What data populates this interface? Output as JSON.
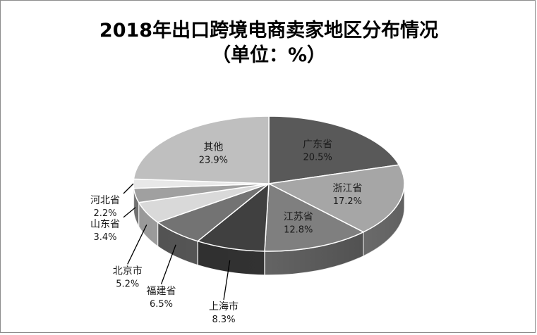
{
  "chart_data": {
    "type": "pie",
    "style": "3d",
    "title": "2018年出口跨境电商卖家地区分布情况",
    "subtitle": "（单位：%）",
    "unit": "%",
    "legend": "none",
    "slices": [
      {
        "label": "广东省",
        "value": 20.5,
        "value_text": "20.5%",
        "color": "#595959"
      },
      {
        "label": "浙江省",
        "value": 17.2,
        "value_text": "17.2%",
        "color": "#a6a6a6"
      },
      {
        "label": "江苏省",
        "value": 12.8,
        "value_text": "12.8%",
        "color": "#7f7f7f"
      },
      {
        "label": "上海市",
        "value": 8.3,
        "value_text": "8.3%",
        "color": "#404040"
      },
      {
        "label": "福建省",
        "value": 6.5,
        "value_text": "6.5%",
        "color": "#737373"
      },
      {
        "label": "北京市",
        "value": 5.2,
        "value_text": "5.2%",
        "color": "#d9d9d9"
      },
      {
        "label": "山东省",
        "value": 3.4,
        "value_text": "3.4%",
        "color": "#a0a0a0"
      },
      {
        "label": "河北省",
        "value": 2.2,
        "value_text": "2.2%",
        "color": "#e8e8e8"
      },
      {
        "label": "其他",
        "value": 23.9,
        "value_text": "23.9%",
        "color": "#bfbfbf"
      }
    ]
  }
}
